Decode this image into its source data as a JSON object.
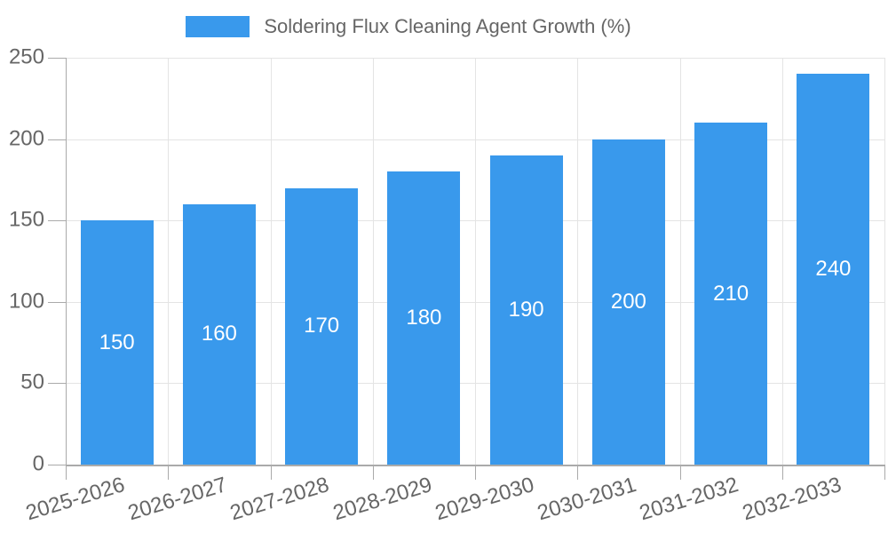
{
  "chart_data": {
    "type": "bar",
    "title": "Soldering Flux Cleaning Agent Growth (%)",
    "categories": [
      "2025-2026",
      "2026-2027",
      "2027-2028",
      "2028-2029",
      "2029-2030",
      "2030-2031",
      "2031-2032",
      "2032-2033"
    ],
    "values": [
      150,
      160,
      170,
      180,
      190,
      200,
      210,
      240
    ],
    "xlabel": "",
    "ylabel": "",
    "ylim": [
      0,
      250
    ],
    "yticks": [
      0,
      50,
      100,
      150,
      200,
      250
    ],
    "grid": "horizontal and vertical, light gray",
    "legend_position": "top-center",
    "bar_value_labels": "white, centered inside bars",
    "colors": {
      "bar": "#3999EC",
      "grid": "#E4E4E4",
      "axis": "#AAAAAA",
      "tick_text": "#666666",
      "value_label": "#FFFFFF"
    }
  }
}
